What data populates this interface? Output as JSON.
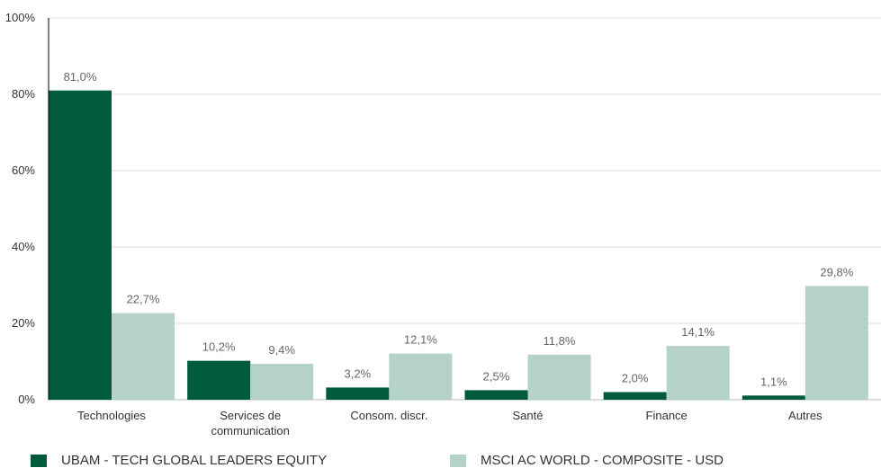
{
  "chart_data": {
    "type": "bar",
    "categories": [
      [
        "Technologies"
      ],
      [
        "Services de",
        "communication"
      ],
      [
        "Consom. discr."
      ],
      [
        "Santé"
      ],
      [
        "Finance"
      ],
      [
        "Autres"
      ]
    ],
    "series": [
      {
        "name": "UBAM - TECH GLOBAL LEADERS EQUITY",
        "color": "#005a3c",
        "values": [
          81.0,
          10.2,
          3.2,
          2.5,
          2.0,
          1.1
        ],
        "labels": [
          "81,0%",
          "10,2%",
          "3,2%",
          "2,5%",
          "2,0%",
          "1,1%"
        ]
      },
      {
        "name": "MSCI AC WORLD - COMPOSITE - USD",
        "color": "#b5d2c8",
        "values": [
          22.7,
          9.4,
          12.1,
          11.8,
          14.1,
          29.8
        ],
        "labels": [
          "22,7%",
          "9,4%",
          "12,1%",
          "11,8%",
          "14,1%",
          "29,8%"
        ]
      }
    ],
    "ylim": [
      0,
      100
    ],
    "yticks": [
      0,
      20,
      40,
      60,
      80,
      100
    ],
    "ytick_labels": [
      "0%",
      "20%",
      "40%",
      "60%",
      "80%",
      "100%"
    ],
    "grid": true,
    "legend_position": "bottom"
  }
}
